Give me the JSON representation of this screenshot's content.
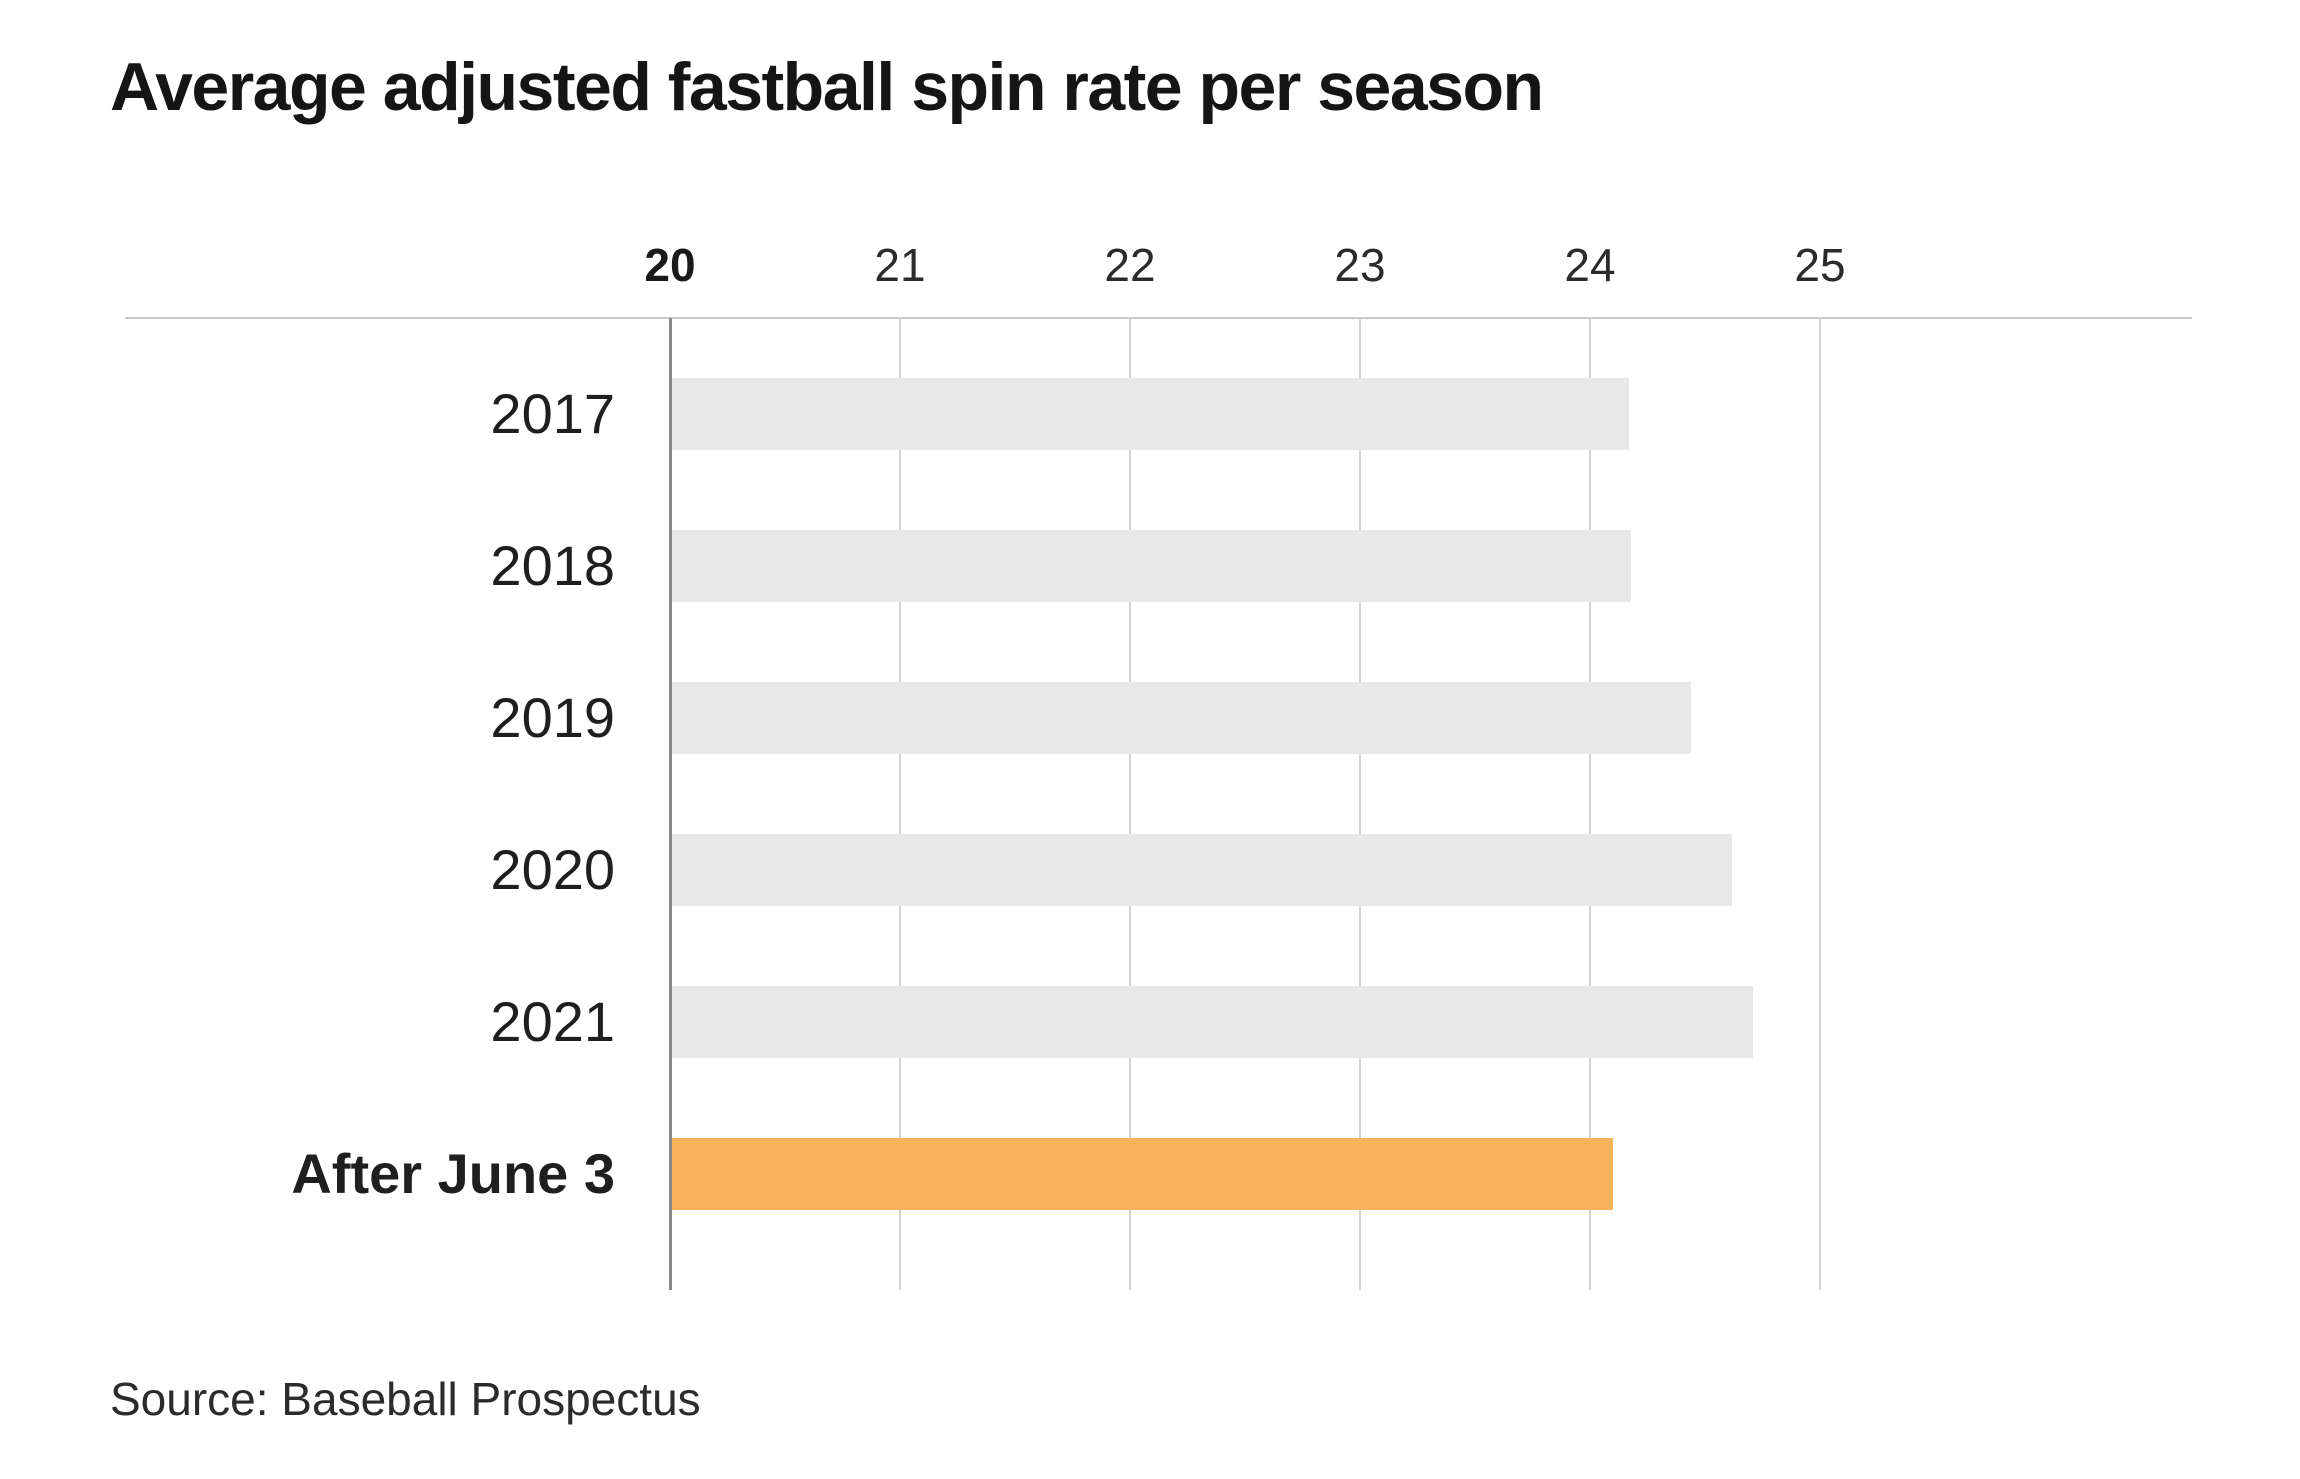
{
  "title": "Average adjusted fastball spin rate per season",
  "source_label": "Source: Baseball Prospectus",
  "chart_data": {
    "type": "bar",
    "orientation": "horizontal",
    "title": "Average adjusted fastball spin rate per season",
    "categories": [
      "2017",
      "2018",
      "2019",
      "2020",
      "2021",
      "After June 3"
    ],
    "values": [
      24.16,
      24.17,
      24.43,
      24.61,
      24.7,
      24.09
    ],
    "highlight_index": 5,
    "bold_category_index": 5,
    "xticks": [
      20,
      21,
      22,
      23,
      24,
      25
    ],
    "bold_tick": 20,
    "xlim": [
      20,
      26.6
    ],
    "grid": true,
    "legend": false,
    "xlabel": "",
    "ylabel": "",
    "colors": {
      "bar": "#E8E8E8",
      "highlight": "#F9B45B",
      "axis_line": "#8A8A8A",
      "gridline": "#D3D3D3",
      "top_rule": "#C9C9C9"
    },
    "source": "Source: Baseball Prospectus"
  }
}
